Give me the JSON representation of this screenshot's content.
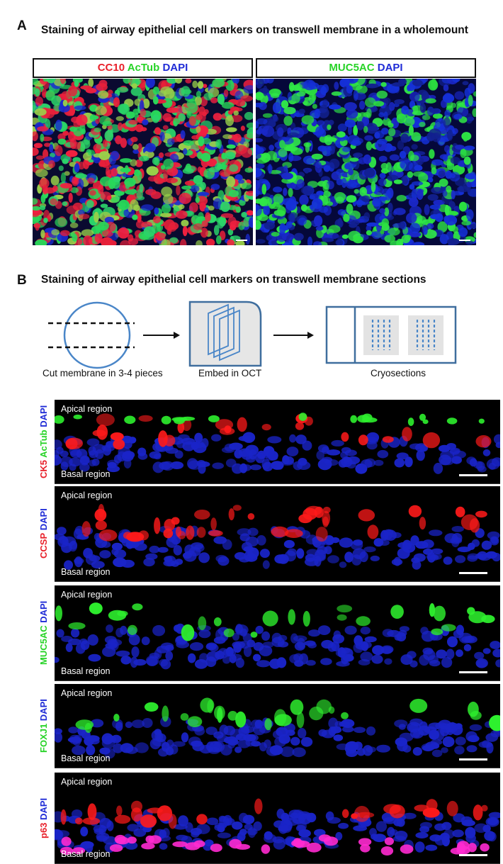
{
  "panel_a": {
    "letter": "A",
    "title": "Staining of airway epithelial cell markers on transwell membrane in a wholemount",
    "left_label": {
      "cc10": "CC10",
      "actub": "AcTub",
      "dapi": "DAPI"
    },
    "right_label": {
      "muc5ac": "MUC5AC",
      "dapi": "DAPI"
    }
  },
  "panel_b": {
    "letter": "B",
    "title": "Staining of airway epithelial cell markers on transwell membrane sections",
    "steps": [
      "Cut membrane in 3-4 pieces",
      "Embed in OCT",
      "Cryosections"
    ],
    "sections": [
      {
        "apical": "Apical region",
        "basal": "Basal region",
        "markers": [
          {
            "text": "CK5",
            "color": "#e8202a"
          },
          {
            "text": " AcTub",
            "color": "#27d327"
          },
          {
            "text": " DAPI",
            "color": "#1f2bd6"
          }
        ]
      },
      {
        "apical": "Apical region",
        "basal": "Basal region",
        "markers": [
          {
            "text": "CCSP",
            "color": "#e8202a"
          },
          {
            "text": " DAPI",
            "color": "#1f2bd6"
          }
        ]
      },
      {
        "apical": "Apical region",
        "basal": "Basal region",
        "markers": [
          {
            "text": "MUC5AC",
            "color": "#27d327"
          },
          {
            "text": " DAPI",
            "color": "#1f2bd6"
          }
        ]
      },
      {
        "apical": "Apical region",
        "basal": "Basal region",
        "markers": [
          {
            "text": "FOXJ1",
            "color": "#27d327"
          },
          {
            "text": " DAPI",
            "color": "#1f2bd6"
          }
        ]
      },
      {
        "apical": "Apical region",
        "basal": "Basal region",
        "markers": [
          {
            "text": "p63",
            "color": "#e8202a"
          },
          {
            "text": " DAPI",
            "color": "#1f2bd6"
          }
        ]
      }
    ]
  }
}
